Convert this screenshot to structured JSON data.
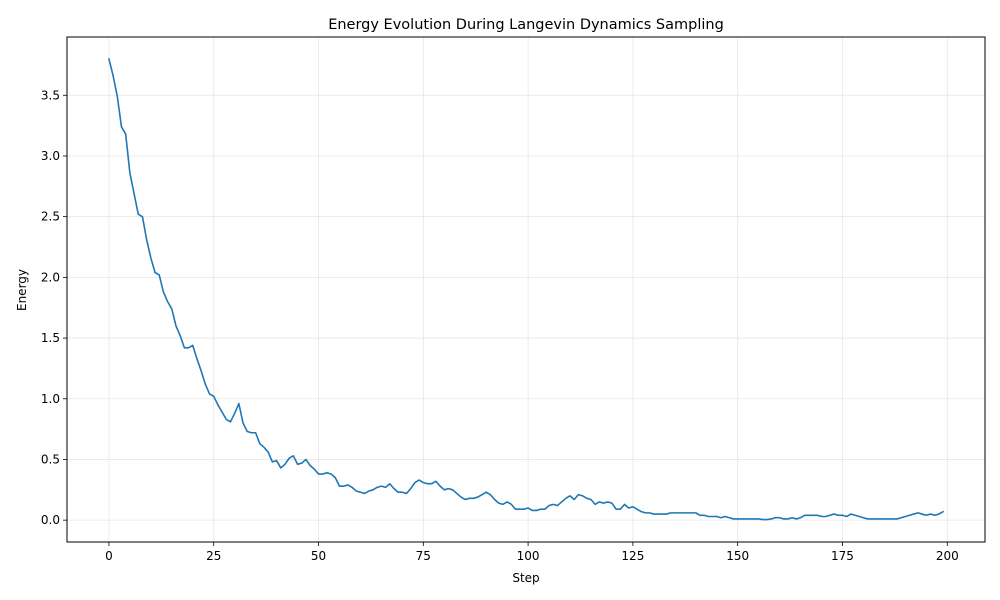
{
  "chart_data": {
    "type": "line",
    "title": "Energy Evolution During Langevin Dynamics Sampling",
    "xlabel": "Step",
    "ylabel": "Energy",
    "xlim": [
      -10,
      209
    ],
    "ylim": [
      -0.18,
      3.98
    ],
    "xticks": [
      0,
      25,
      50,
      75,
      100,
      125,
      150,
      175,
      200
    ],
    "xtick_labels": [
      "0",
      "25",
      "50",
      "75",
      "100",
      "125",
      "150",
      "175",
      "200"
    ],
    "yticks": [
      0.0,
      0.5,
      1.0,
      1.5,
      2.0,
      2.5,
      3.0,
      3.5
    ],
    "ytick_labels": [
      "0.0",
      "0.5",
      "1.0",
      "1.5",
      "2.0",
      "2.5",
      "3.0",
      "3.5"
    ],
    "grid": true,
    "legend": "none",
    "line_color": "#1f77b4",
    "series": [
      {
        "name": "Energy",
        "x_start": 0,
        "x_step": 1,
        "values": [
          3.8,
          3.66,
          3.49,
          3.24,
          3.18,
          2.86,
          2.69,
          2.52,
          2.5,
          2.31,
          2.16,
          2.04,
          2.02,
          1.88,
          1.8,
          1.74,
          1.6,
          1.52,
          1.42,
          1.42,
          1.44,
          1.33,
          1.23,
          1.12,
          1.04,
          1.02,
          0.95,
          0.89,
          0.83,
          0.81,
          0.88,
          0.96,
          0.8,
          0.73,
          0.72,
          0.72,
          0.63,
          0.6,
          0.56,
          0.48,
          0.49,
          0.43,
          0.46,
          0.51,
          0.53,
          0.46,
          0.47,
          0.5,
          0.45,
          0.42,
          0.38,
          0.38,
          0.39,
          0.38,
          0.35,
          0.28,
          0.28,
          0.29,
          0.27,
          0.24,
          0.23,
          0.22,
          0.24,
          0.25,
          0.27,
          0.28,
          0.27,
          0.3,
          0.26,
          0.23,
          0.23,
          0.22,
          0.26,
          0.31,
          0.33,
          0.31,
          0.3,
          0.3,
          0.32,
          0.28,
          0.25,
          0.26,
          0.25,
          0.22,
          0.19,
          0.17,
          0.18,
          0.18,
          0.19,
          0.21,
          0.23,
          0.21,
          0.17,
          0.14,
          0.13,
          0.15,
          0.13,
          0.09,
          0.09,
          0.09,
          0.1,
          0.08,
          0.08,
          0.09,
          0.09,
          0.12,
          0.13,
          0.12,
          0.15,
          0.18,
          0.2,
          0.17,
          0.21,
          0.2,
          0.18,
          0.17,
          0.13,
          0.15,
          0.14,
          0.15,
          0.14,
          0.09,
          0.09,
          0.13,
          0.1,
          0.11,
          0.09,
          0.07,
          0.06,
          0.06,
          0.05,
          0.05,
          0.05,
          0.05,
          0.06,
          0.06,
          0.06,
          0.06,
          0.06,
          0.06,
          0.06,
          0.04,
          0.04,
          0.03,
          0.03,
          0.03,
          0.02,
          0.03,
          0.02,
          0.01,
          0.01,
          0.01,
          0.01,
          0.01,
          0.01,
          0.01,
          0.005,
          0.005,
          0.01,
          0.02,
          0.02,
          0.01,
          0.01,
          0.02,
          0.01,
          0.02,
          0.04,
          0.04,
          0.04,
          0.04,
          0.03,
          0.03,
          0.04,
          0.05,
          0.04,
          0.04,
          0.03,
          0.05,
          0.04,
          0.03,
          0.02,
          0.01,
          0.01,
          0.01,
          0.01,
          0.01,
          0.01,
          0.01,
          0.01,
          0.02,
          0.03,
          0.04,
          0.05,
          0.06,
          0.05,
          0.04,
          0.05,
          0.04,
          0.05,
          0.07
        ]
      }
    ]
  }
}
